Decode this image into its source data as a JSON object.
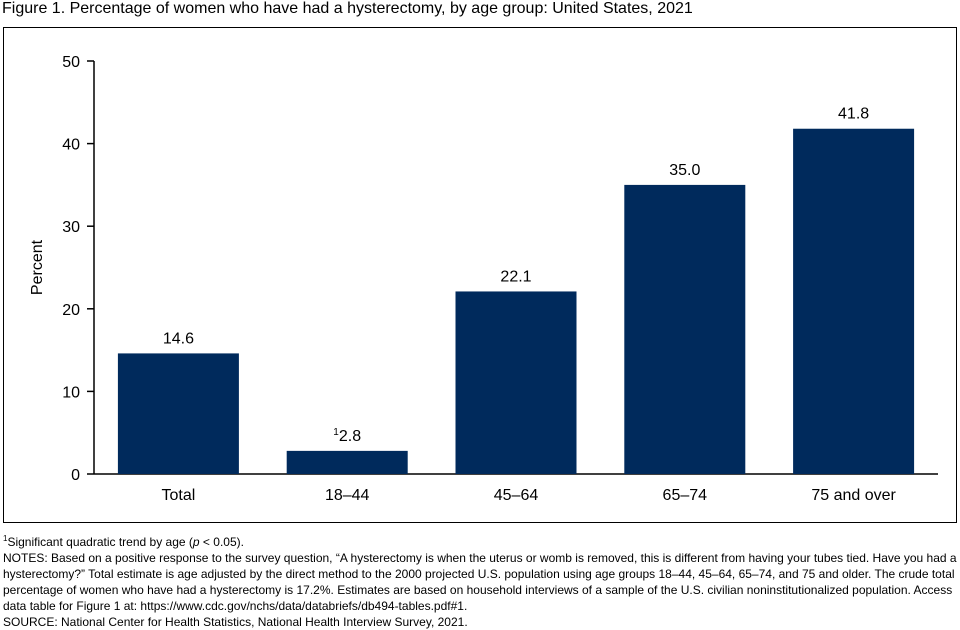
{
  "figure_title": "Figure 1. Percentage of women who have had a hysterectomy, by age group: United States, 2021",
  "colors": {
    "bar": "#002a5c",
    "axis": "#000000"
  },
  "chart_data": {
    "type": "bar",
    "categories": [
      "Total",
      "18–44",
      "45–64",
      "65–74",
      "75 and over"
    ],
    "values": [
      14.6,
      2.8,
      22.1,
      35.0,
      41.8
    ],
    "value_labels": [
      "14.6",
      "2.8",
      "22.1",
      "35.0",
      "41.8"
    ],
    "value_label_superscripts": [
      "",
      "1",
      "",
      "",
      ""
    ],
    "ylabel": "Percent",
    "xlabel": "",
    "ylim": [
      0,
      50
    ],
    "yticks": [
      0,
      10,
      20,
      30,
      40,
      50
    ],
    "grid": false,
    "legend": "none"
  },
  "notes": {
    "footnote_marker": "1",
    "footnote_pre": "Significant quadratic trend by age (",
    "footnote_p": "p",
    "footnote_post": " < 0.05).",
    "notes_text": "NOTES: Based on a positive response to the survey question, “A hysterectomy is when the uterus or womb is removed, this is different from having your tubes tied. Have you had a hysterectomy?” Total estimate is age adjusted by the direct method to the 2000 projected U.S. population using age groups 18–44, 45–64, 65–74, and 75 and older. The crude total percentage of women who have had a hysterectomy is 17.2%. Estimates are based on household interviews of a sample of the U.S. civilian noninstitutionalized population. Access data table for Figure 1 at: https://www.cdc.gov/nchs/data/databriefs/db494-tables.pdf#1.",
    "source_text": "SOURCE: National Center for Health Statistics, National Health Interview Survey, 2021."
  }
}
